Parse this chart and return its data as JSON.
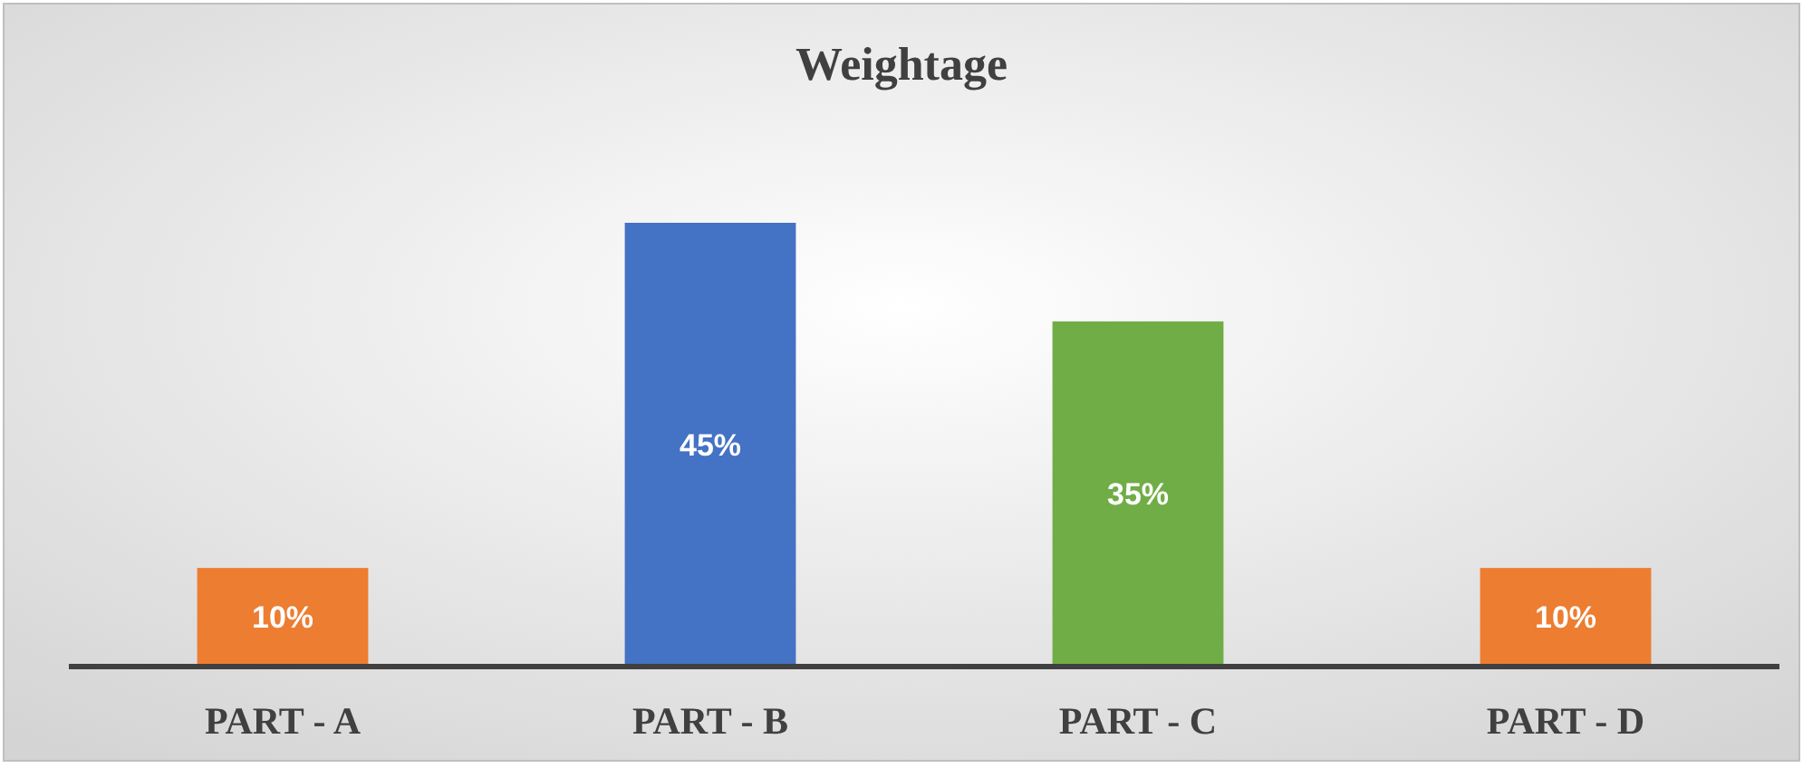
{
  "chart_data": {
    "type": "bar",
    "title": "Weightage",
    "categories": [
      "PART - A",
      "PART - B",
      "PART - C",
      "PART - D"
    ],
    "values": [
      10,
      45,
      35,
      10
    ],
    "colors": [
      "#ed7d31",
      "#4472c4",
      "#70ad47",
      "#ed7d31"
    ],
    "value_labels": [
      "10%",
      "45%",
      "35%",
      "10%"
    ]
  }
}
